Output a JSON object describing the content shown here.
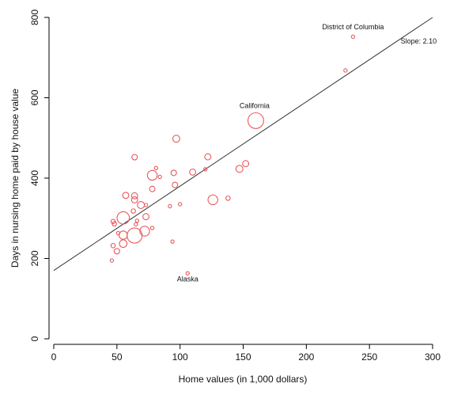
{
  "chart_data": {
    "type": "scatter",
    "xlabel": "Home values (in 1,000 dollars)",
    "ylabel": "Days in nursing home paid by house value",
    "xlim": [
      0,
      300
    ],
    "ylim": [
      0,
      800
    ],
    "x_ticks": [
      "0",
      "50",
      "100",
      "150",
      "200",
      "250",
      "300"
    ],
    "y_ticks": [
      "0",
      "200",
      "400",
      "600",
      "800"
    ],
    "point_color": "#e8595c",
    "grid": false,
    "regression_line": {
      "intercept": 170,
      "slope": 2.1,
      "label": "Slope: 2.10"
    },
    "annotations": [
      {
        "text": "District of Columbia",
        "x": 237,
        "y": 770
      },
      {
        "text": "California",
        "x": 159,
        "y": 574
      },
      {
        "text": "Alaska",
        "x": 106,
        "y": 143
      },
      {
        "text": "Slope: 2.10",
        "x": 289,
        "y": 735
      }
    ],
    "points": [
      {
        "x": 237,
        "y": 752,
        "size": 0.3
      },
      {
        "x": 231,
        "y": 668,
        "size": 0.3
      },
      {
        "x": 160,
        "y": 543,
        "size": 6.5
      },
      {
        "x": 106,
        "y": 163,
        "size": 0.3
      },
      {
        "x": 97,
        "y": 498,
        "size": 1.3
      },
      {
        "x": 64,
        "y": 452,
        "size": 0.8
      },
      {
        "x": 122,
        "y": 453,
        "size": 1.0
      },
      {
        "x": 152,
        "y": 436,
        "size": 1.0
      },
      {
        "x": 147,
        "y": 423,
        "size": 1.3
      },
      {
        "x": 120,
        "y": 422,
        "size": 0.3
      },
      {
        "x": 95,
        "y": 413,
        "size": 0.8
      },
      {
        "x": 110,
        "y": 415,
        "size": 1.0
      },
      {
        "x": 78,
        "y": 407,
        "size": 2.5
      },
      {
        "x": 84,
        "y": 403,
        "size": 0.3
      },
      {
        "x": 81,
        "y": 425,
        "size": 0.3
      },
      {
        "x": 96,
        "y": 383,
        "size": 0.8
      },
      {
        "x": 78,
        "y": 373,
        "size": 0.8
      },
      {
        "x": 57,
        "y": 357,
        "size": 1.0
      },
      {
        "x": 64,
        "y": 356,
        "size": 1.0
      },
      {
        "x": 64,
        "y": 346,
        "size": 1.0
      },
      {
        "x": 126,
        "y": 346,
        "size": 2.5
      },
      {
        "x": 138,
        "y": 350,
        "size": 0.5
      },
      {
        "x": 69,
        "y": 333,
        "size": 1.3
      },
      {
        "x": 73,
        "y": 333,
        "size": 0.3
      },
      {
        "x": 92,
        "y": 330,
        "size": 0.3
      },
      {
        "x": 100,
        "y": 335,
        "size": 0.3
      },
      {
        "x": 63,
        "y": 318,
        "size": 0.5
      },
      {
        "x": 73,
        "y": 304,
        "size": 1.0
      },
      {
        "x": 55,
        "y": 301,
        "size": 4.0
      },
      {
        "x": 47,
        "y": 292,
        "size": 0.5
      },
      {
        "x": 48,
        "y": 286,
        "size": 0.5
      },
      {
        "x": 65,
        "y": 285,
        "size": 0.3
      },
      {
        "x": 78,
        "y": 276,
        "size": 0.3
      },
      {
        "x": 72,
        "y": 268,
        "size": 2.5
      },
      {
        "x": 64,
        "y": 257,
        "size": 6.0
      },
      {
        "x": 55,
        "y": 258,
        "size": 1.8
      },
      {
        "x": 47,
        "y": 232,
        "size": 0.5
      },
      {
        "x": 55,
        "y": 237,
        "size": 1.5
      },
      {
        "x": 50,
        "y": 218,
        "size": 0.8
      },
      {
        "x": 46,
        "y": 195,
        "size": 0.3
      },
      {
        "x": 51,
        "y": 263,
        "size": 0.3
      },
      {
        "x": 66,
        "y": 294,
        "size": 0.3
      },
      {
        "x": 94,
        "y": 242,
        "size": 0.3
      }
    ]
  }
}
